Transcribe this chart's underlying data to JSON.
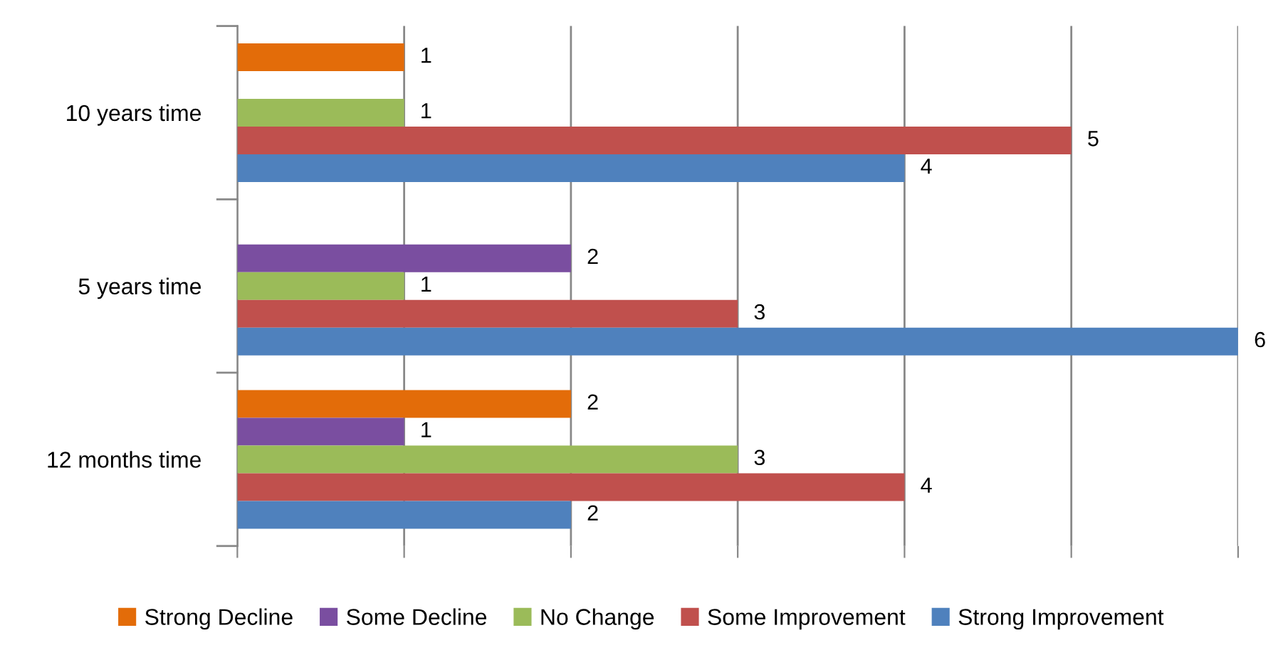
{
  "chart_data": {
    "type": "bar",
    "orientation": "horizontal",
    "categories": [
      "10 years time",
      "5 years time",
      "12 months time"
    ],
    "series": [
      {
        "name": "Strong Decline",
        "color": "#e36c09",
        "values": [
          1,
          null,
          2
        ]
      },
      {
        "name": "Some Decline",
        "color": "#7a4ea0",
        "values": [
          null,
          2,
          1
        ]
      },
      {
        "name": "No Change",
        "color": "#9bbb59",
        "values": [
          1,
          1,
          3
        ]
      },
      {
        "name": "Some Improvement",
        "color": "#c0504d",
        "values": [
          5,
          3,
          4
        ]
      },
      {
        "name": "Strong Improvement",
        "color": "#4f81bd",
        "values": [
          4,
          6,
          2
        ]
      }
    ],
    "xlim": [
      0,
      6
    ],
    "xticks": [
      {
        "value": 0,
        "label": null
      },
      {
        "value": 1,
        "label": null
      },
      {
        "value": 2,
        "label": null
      },
      {
        "value": 3,
        "label": null
      },
      {
        "value": 4,
        "label": null
      },
      {
        "value": 5,
        "label": null
      },
      {
        "value": 6,
        "label": null
      }
    ],
    "grid": "x",
    "legend": "bottom",
    "tick_labels": "y",
    "data_labels": true
  }
}
